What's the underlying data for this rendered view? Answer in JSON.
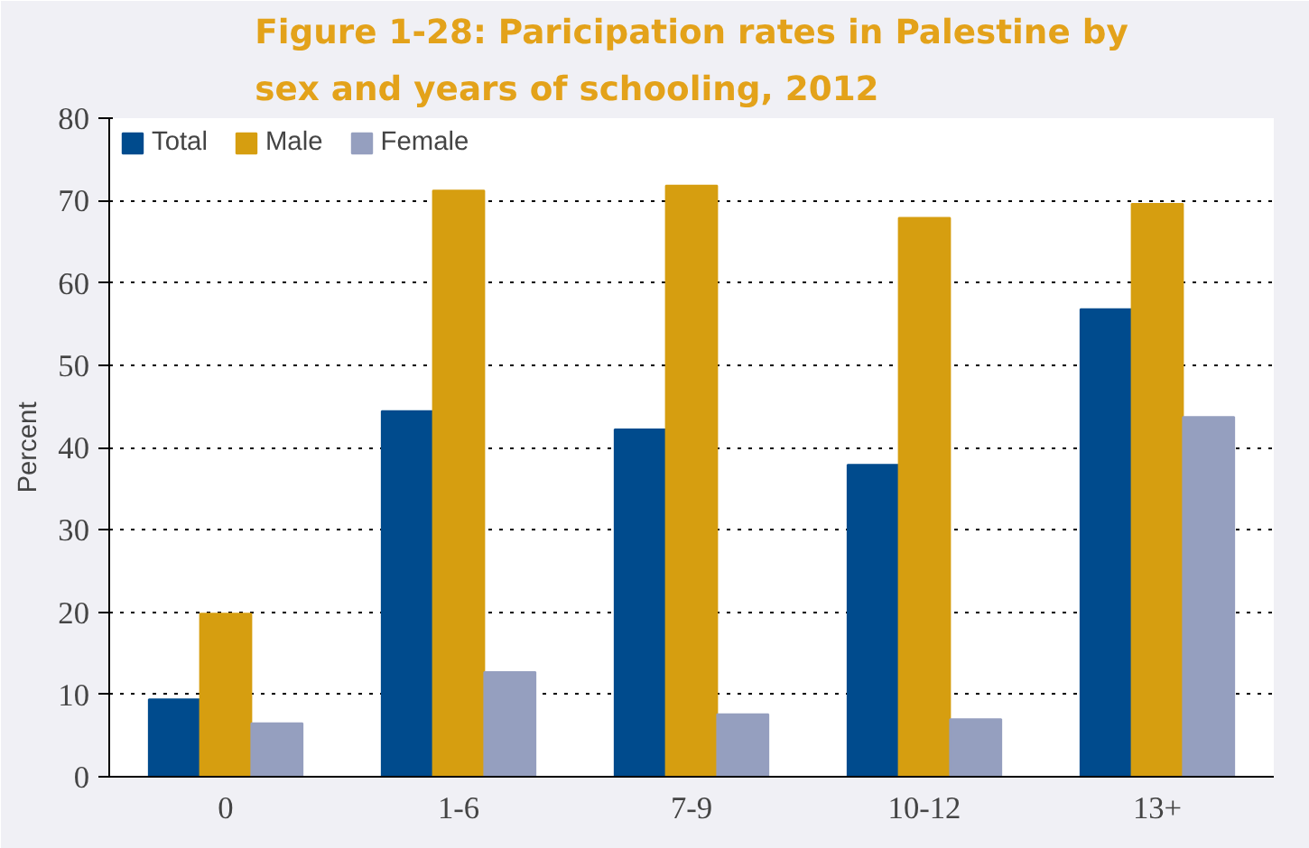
{
  "chart_data": {
    "type": "bar",
    "title": "Figure 1-28: Paricipation rates in Palestine by sex and years of schooling, 2012",
    "ylabel": "Percent",
    "categories": [
      "0",
      "1-6",
      "7-9",
      "10-12",
      "13+"
    ],
    "series": [
      {
        "name": "Total",
        "color": "#004b8d",
        "values": [
          9.4,
          44.4,
          42.2,
          37.9,
          56.8
        ]
      },
      {
        "name": "Male",
        "color": "#d69e10",
        "values": [
          19.8,
          71.2,
          71.8,
          67.9,
          69.6
        ]
      },
      {
        "name": "Female",
        "color": "#959fbf",
        "values": [
          6.5,
          12.7,
          7.6,
          7.0,
          43.7
        ]
      }
    ],
    "ylim": [
      0,
      80
    ],
    "yticks": [
      0,
      10,
      20,
      30,
      40,
      50,
      60,
      70,
      80
    ],
    "grid": "y",
    "legend": "top left"
  }
}
